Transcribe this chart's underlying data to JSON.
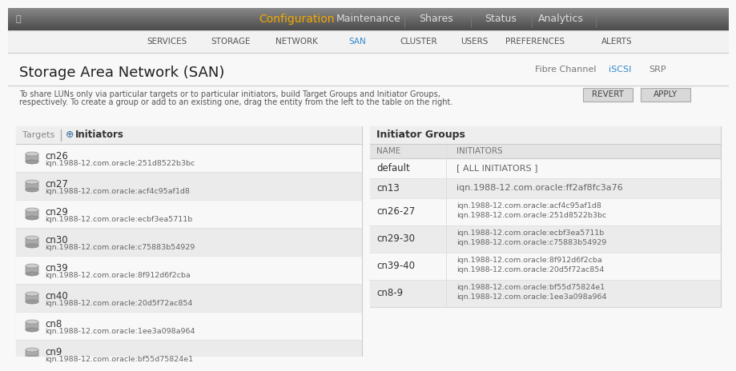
{
  "title_main": "Configuration",
  "nav_items": [
    "Maintenance",
    "Shares",
    "Status",
    "Analytics"
  ],
  "sub_nav": [
    "SERVICES",
    "STORAGE",
    "NETWORK",
    "SAN",
    "CLUSTER",
    "USERS",
    "PREFERENCES",
    "ALERTS"
  ],
  "sub_nav_active": "SAN",
  "page_title": "Storage Area Network (SAN)",
  "page_desc_line1": "To share LUNs only via particular targets or to particular initiators, build Target Groups and Initiator Groups,",
  "page_desc_line2": "respectively. To create a group or add to an existing one, drag the entity from the left to the table on the right.",
  "tabs": [
    "Fibre Channel",
    "iSCSI",
    "SRP"
  ],
  "active_tab": "iSCSI",
  "buttons": [
    "REVERT",
    "APPLY"
  ],
  "left_panel_title": "Initiators",
  "left_panel_tab2": "Targets",
  "initiators": [
    {
      "name": "cn26",
      "iqn": "iqn.1988-12.com.oracle:251d8522b3bc",
      "shaded": false
    },
    {
      "name": "cn27",
      "iqn": "iqn.1988-12.com.oracle:acf4c95af1d8",
      "shaded": true
    },
    {
      "name": "cn29",
      "iqn": "iqn.1988-12.com.oracle:ecbf3ea5711b",
      "shaded": false
    },
    {
      "name": "cn30",
      "iqn": "iqn.1988-12.com.oracle:c75883b54929",
      "shaded": true
    },
    {
      "name": "cn39",
      "iqn": "iqn.1988-12.com.oracle:8f912d6f2cba",
      "shaded": false
    },
    {
      "name": "cn40",
      "iqn": "iqn.1988-12.com.oracle:20d5f72ac854",
      "shaded": true
    },
    {
      "name": "cn8",
      "iqn": "iqn.1988-12.com.oracle:1ee3a098a964",
      "shaded": false
    },
    {
      "name": "cn9",
      "iqn": "iqn.1988-12.com.oracle:bf55d75824e1",
      "shaded": true
    }
  ],
  "right_panel_title": "Initiator Groups",
  "groups": [
    {
      "name": "default",
      "initiators": "[ ALL INITIATORS ]",
      "shaded": false,
      "two_lines": false
    },
    {
      "name": "cn13",
      "initiators": "iqn.1988-12.com.oracle:ff2af8fc3a76",
      "shaded": true,
      "two_lines": false
    },
    {
      "name": "cn26-27",
      "line1": "iqn.1988-12.com.oracle:acf4c95af1d8",
      "line2": "iqn.1988-12.com.oracle:251d8522b3bc",
      "shaded": false,
      "two_lines": true
    },
    {
      "name": "cn29-30",
      "line1": "iqn.1988-12.com.oracle:ecbf3ea5711b",
      "line2": "iqn.1988-12.com.oracle:c75883b54929",
      "shaded": true,
      "two_lines": true
    },
    {
      "name": "cn39-40",
      "line1": "iqn.1988-12.com.oracle:8f912d6f2cba",
      "line2": "iqn.1988-12.com.oracle:20d5f72ac854",
      "shaded": false,
      "two_lines": true
    },
    {
      "name": "cn8-9",
      "line1": "iqn.1988-12.com.oracle:bf55d75824e1",
      "line2": "iqn.1988-12.com.oracle:1ee3a098a964",
      "shaded": true,
      "two_lines": true
    }
  ],
  "header_gradient_top": "#7a7a7a",
  "header_gradient_bot": "#555555",
  "header_text_color": "#f5a800",
  "nav_text_color": "#dddddd",
  "nav_divider_color": "#888888",
  "subnav_bg": "#f0f0f0",
  "subnav_text": "#555555",
  "subnav_active_text": "#3388cc",
  "subnav_border": "#cccccc",
  "body_bg": "#f8f8f8",
  "page_title_color": "#222222",
  "page_desc_color": "#555555",
  "tab_inactive_color": "#777777",
  "tab_active_color": "#3388cc",
  "btn_bg": "#d8d8d8",
  "btn_border": "#aaaaaa",
  "btn_text": "#444444",
  "panel_bg": "#ffffff",
  "panel_border": "#cccccc",
  "panel_header_bg": "#eeeeee",
  "panel_header_border": "#cccccc",
  "col_header_bg": "#e4e4e4",
  "col_header_text": "#777777",
  "col_header_border": "#cccccc",
  "row_shaded_bg": "#ebebeb",
  "row_normal_bg": "#f8f8f8",
  "row_border": "#dddddd",
  "name_text": "#333333",
  "iqn_text": "#666666",
  "icon_body": "#888888",
  "icon_top": "#aaaaaa"
}
